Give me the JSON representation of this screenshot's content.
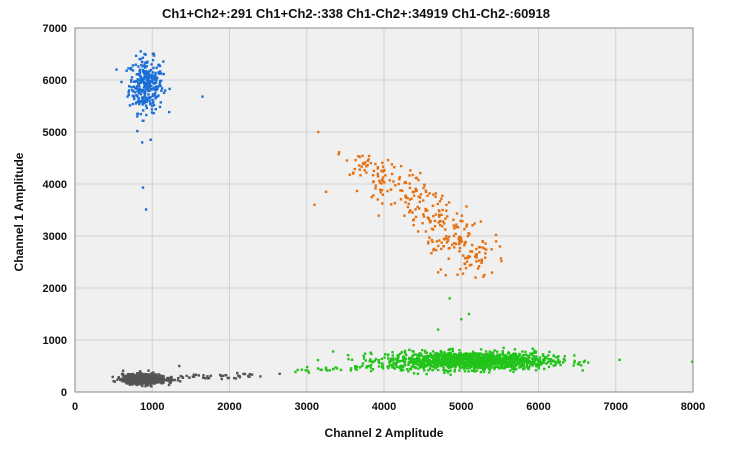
{
  "chart_data": {
    "type": "scatter",
    "title": "Ch1+Ch2+:291  Ch1+Ch2-:338  Ch1-Ch2+:34919  Ch1-Ch2-:60918",
    "xlabel": "Channel 2 Amplitude",
    "ylabel": "Channel 1 Amplitude",
    "xlim": [
      0,
      8000
    ],
    "ylim": [
      0,
      7000
    ],
    "xticks": [
      "0",
      "1000",
      "2000",
      "3000",
      "4000",
      "5000",
      "6000",
      "7000",
      "8000"
    ],
    "yticks": [
      "0",
      "1000",
      "2000",
      "3000",
      "4000",
      "5000",
      "6000",
      "7000"
    ],
    "grid": true,
    "background": "#f0f0f0",
    "series": [
      {
        "color": "#1a6fd6",
        "center": [
          920,
          5900
        ],
        "spread": [
          110,
          260
        ],
        "count": 300,
        "outliers": [
          [
            1650,
            5680
          ],
          [
            980,
            4850
          ],
          [
            870,
            4800
          ],
          [
            880,
            3930
          ],
          [
            920,
            3510
          ],
          [
            1010,
            6380
          ],
          [
            900,
            6500
          ]
        ]
      },
      {
        "color": "#e57010",
        "center": [
          4200,
          3900
        ],
        "spread": [
          380,
          340
        ],
        "count": 300,
        "trend": [
          [
            3700,
            4400
          ],
          [
            4300,
            3900
          ],
          [
            4800,
            3100
          ],
          [
            5200,
            2500
          ]
        ],
        "outliers": [
          [
            3150,
            5000
          ],
          [
            3100,
            3600
          ],
          [
            3250,
            3850
          ],
          [
            5500,
            2800
          ],
          [
            5300,
            2250
          ],
          [
            4700,
            2300
          ],
          [
            3600,
            4200
          ]
        ]
      },
      {
        "color": "#22c41a",
        "center": [
          5100,
          600
        ],
        "spread": [
          520,
          85
        ],
        "count": 1400,
        "tail": [
          [
            2800,
            390
          ],
          [
            3700,
            460
          ],
          [
            4500,
            520
          ]
        ],
        "outliers": [
          [
            6600,
            600
          ],
          [
            7050,
            620
          ],
          [
            7990,
            580
          ],
          [
            6250,
            580
          ],
          [
            4850,
            1800
          ],
          [
            5000,
            1400
          ],
          [
            5100,
            1500
          ],
          [
            4700,
            1200
          ]
        ]
      },
      {
        "color": "#555555",
        "center": [
          900,
          250
        ],
        "spread": [
          140,
          45
        ],
        "count": 900,
        "tail": [
          [
            1300,
            280
          ],
          [
            1900,
            300
          ],
          [
            2300,
            320
          ]
        ],
        "outliers": [
          [
            2400,
            300
          ],
          [
            2650,
            350
          ],
          [
            1900,
            250
          ],
          [
            1350,
            500
          ]
        ]
      }
    ]
  }
}
